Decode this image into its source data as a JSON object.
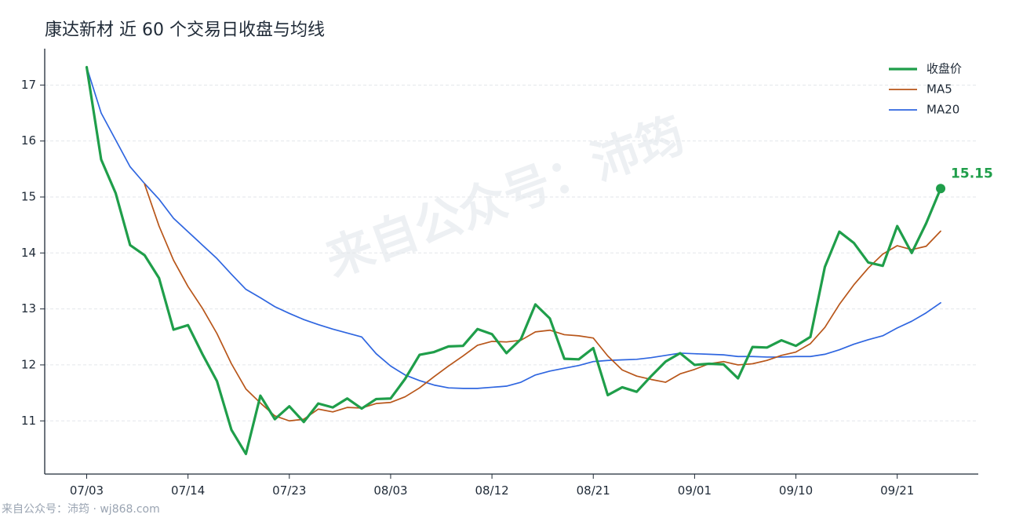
{
  "title": "康达新材 近 60 个交易日收盘与均线",
  "watermark": "来自公众号：沛筠",
  "footer": "来自公众号：沛筠 · wj868.com",
  "chart_data": {
    "type": "line",
    "title": "康达新材 近 60 个交易日收盘与均线",
    "xlabel": "",
    "ylabel": "",
    "x_tick_labels": [
      "07/03",
      "07/14",
      "07/23",
      "08/03",
      "08/12",
      "08/21",
      "09/01",
      "09/10",
      "09/21"
    ],
    "x_tick_indices": [
      0,
      7,
      14,
      21,
      28,
      35,
      42,
      49,
      56
    ],
    "y_ticks": [
      11,
      12,
      13,
      14,
      15,
      16,
      17
    ],
    "ylim": [
      10.05,
      17.65
    ],
    "grid": "horizontal dashed",
    "legend_position": "top-right",
    "last_value_label": "15.15",
    "series": [
      {
        "name": "收盘价",
        "color": "#1f9e4a",
        "values": [
          17.32,
          15.67,
          15.07,
          14.14,
          13.96,
          13.55,
          12.63,
          12.71,
          12.19,
          11.71,
          10.84,
          10.41,
          11.45,
          11.03,
          11.26,
          10.98,
          11.31,
          11.24,
          11.4,
          11.22,
          11.39,
          11.4,
          11.75,
          12.18,
          12.23,
          12.33,
          12.34,
          12.64,
          12.55,
          12.21,
          12.46,
          13.08,
          12.83,
          12.11,
          12.1,
          12.3,
          11.46,
          11.6,
          11.52,
          11.8,
          12.06,
          12.21,
          12.0,
          12.02,
          12.01,
          11.76,
          12.32,
          12.31,
          12.44,
          12.34,
          12.5,
          13.75,
          14.38,
          14.18,
          13.83,
          13.77,
          14.48,
          14.0,
          14.53,
          15.15
        ]
      },
      {
        "name": "MA5",
        "color": "#b8561a",
        "values": [
          null,
          null,
          null,
          null,
          15.23,
          14.48,
          13.87,
          13.4,
          13.01,
          12.56,
          12.02,
          11.57,
          11.32,
          11.09,
          11.0,
          11.03,
          11.21,
          11.16,
          11.24,
          11.23,
          11.31,
          11.33,
          11.43,
          11.59,
          11.79,
          11.98,
          12.16,
          12.35,
          12.42,
          12.41,
          12.44,
          12.59,
          12.62,
          12.54,
          12.52,
          12.48,
          12.16,
          11.91,
          11.8,
          11.74,
          11.69,
          11.84,
          11.92,
          12.02,
          12.06,
          12.0,
          12.02,
          12.08,
          12.17,
          12.23,
          12.38,
          12.67,
          13.08,
          13.43,
          13.73,
          13.98,
          14.13,
          14.06,
          14.12,
          14.39
        ]
      },
      {
        "name": "MA20",
        "color": "#2f66e0",
        "values": [
          17.32,
          16.5,
          16.02,
          15.54,
          15.24,
          14.96,
          14.62,
          14.38,
          14.14,
          13.9,
          13.62,
          13.35,
          13.2,
          13.04,
          12.92,
          12.81,
          12.72,
          12.64,
          12.57,
          12.5,
          12.2,
          11.98,
          11.82,
          11.72,
          11.64,
          11.59,
          11.58,
          11.58,
          11.6,
          11.62,
          11.69,
          11.82,
          11.89,
          11.94,
          11.99,
          12.06,
          12.08,
          12.09,
          12.1,
          12.13,
          12.17,
          12.21,
          12.2,
          12.19,
          12.18,
          12.15,
          12.15,
          12.14,
          12.14,
          12.15,
          12.15,
          12.19,
          12.27,
          12.37,
          12.45,
          12.52,
          12.66,
          12.78,
          12.93,
          13.11
        ]
      }
    ]
  }
}
